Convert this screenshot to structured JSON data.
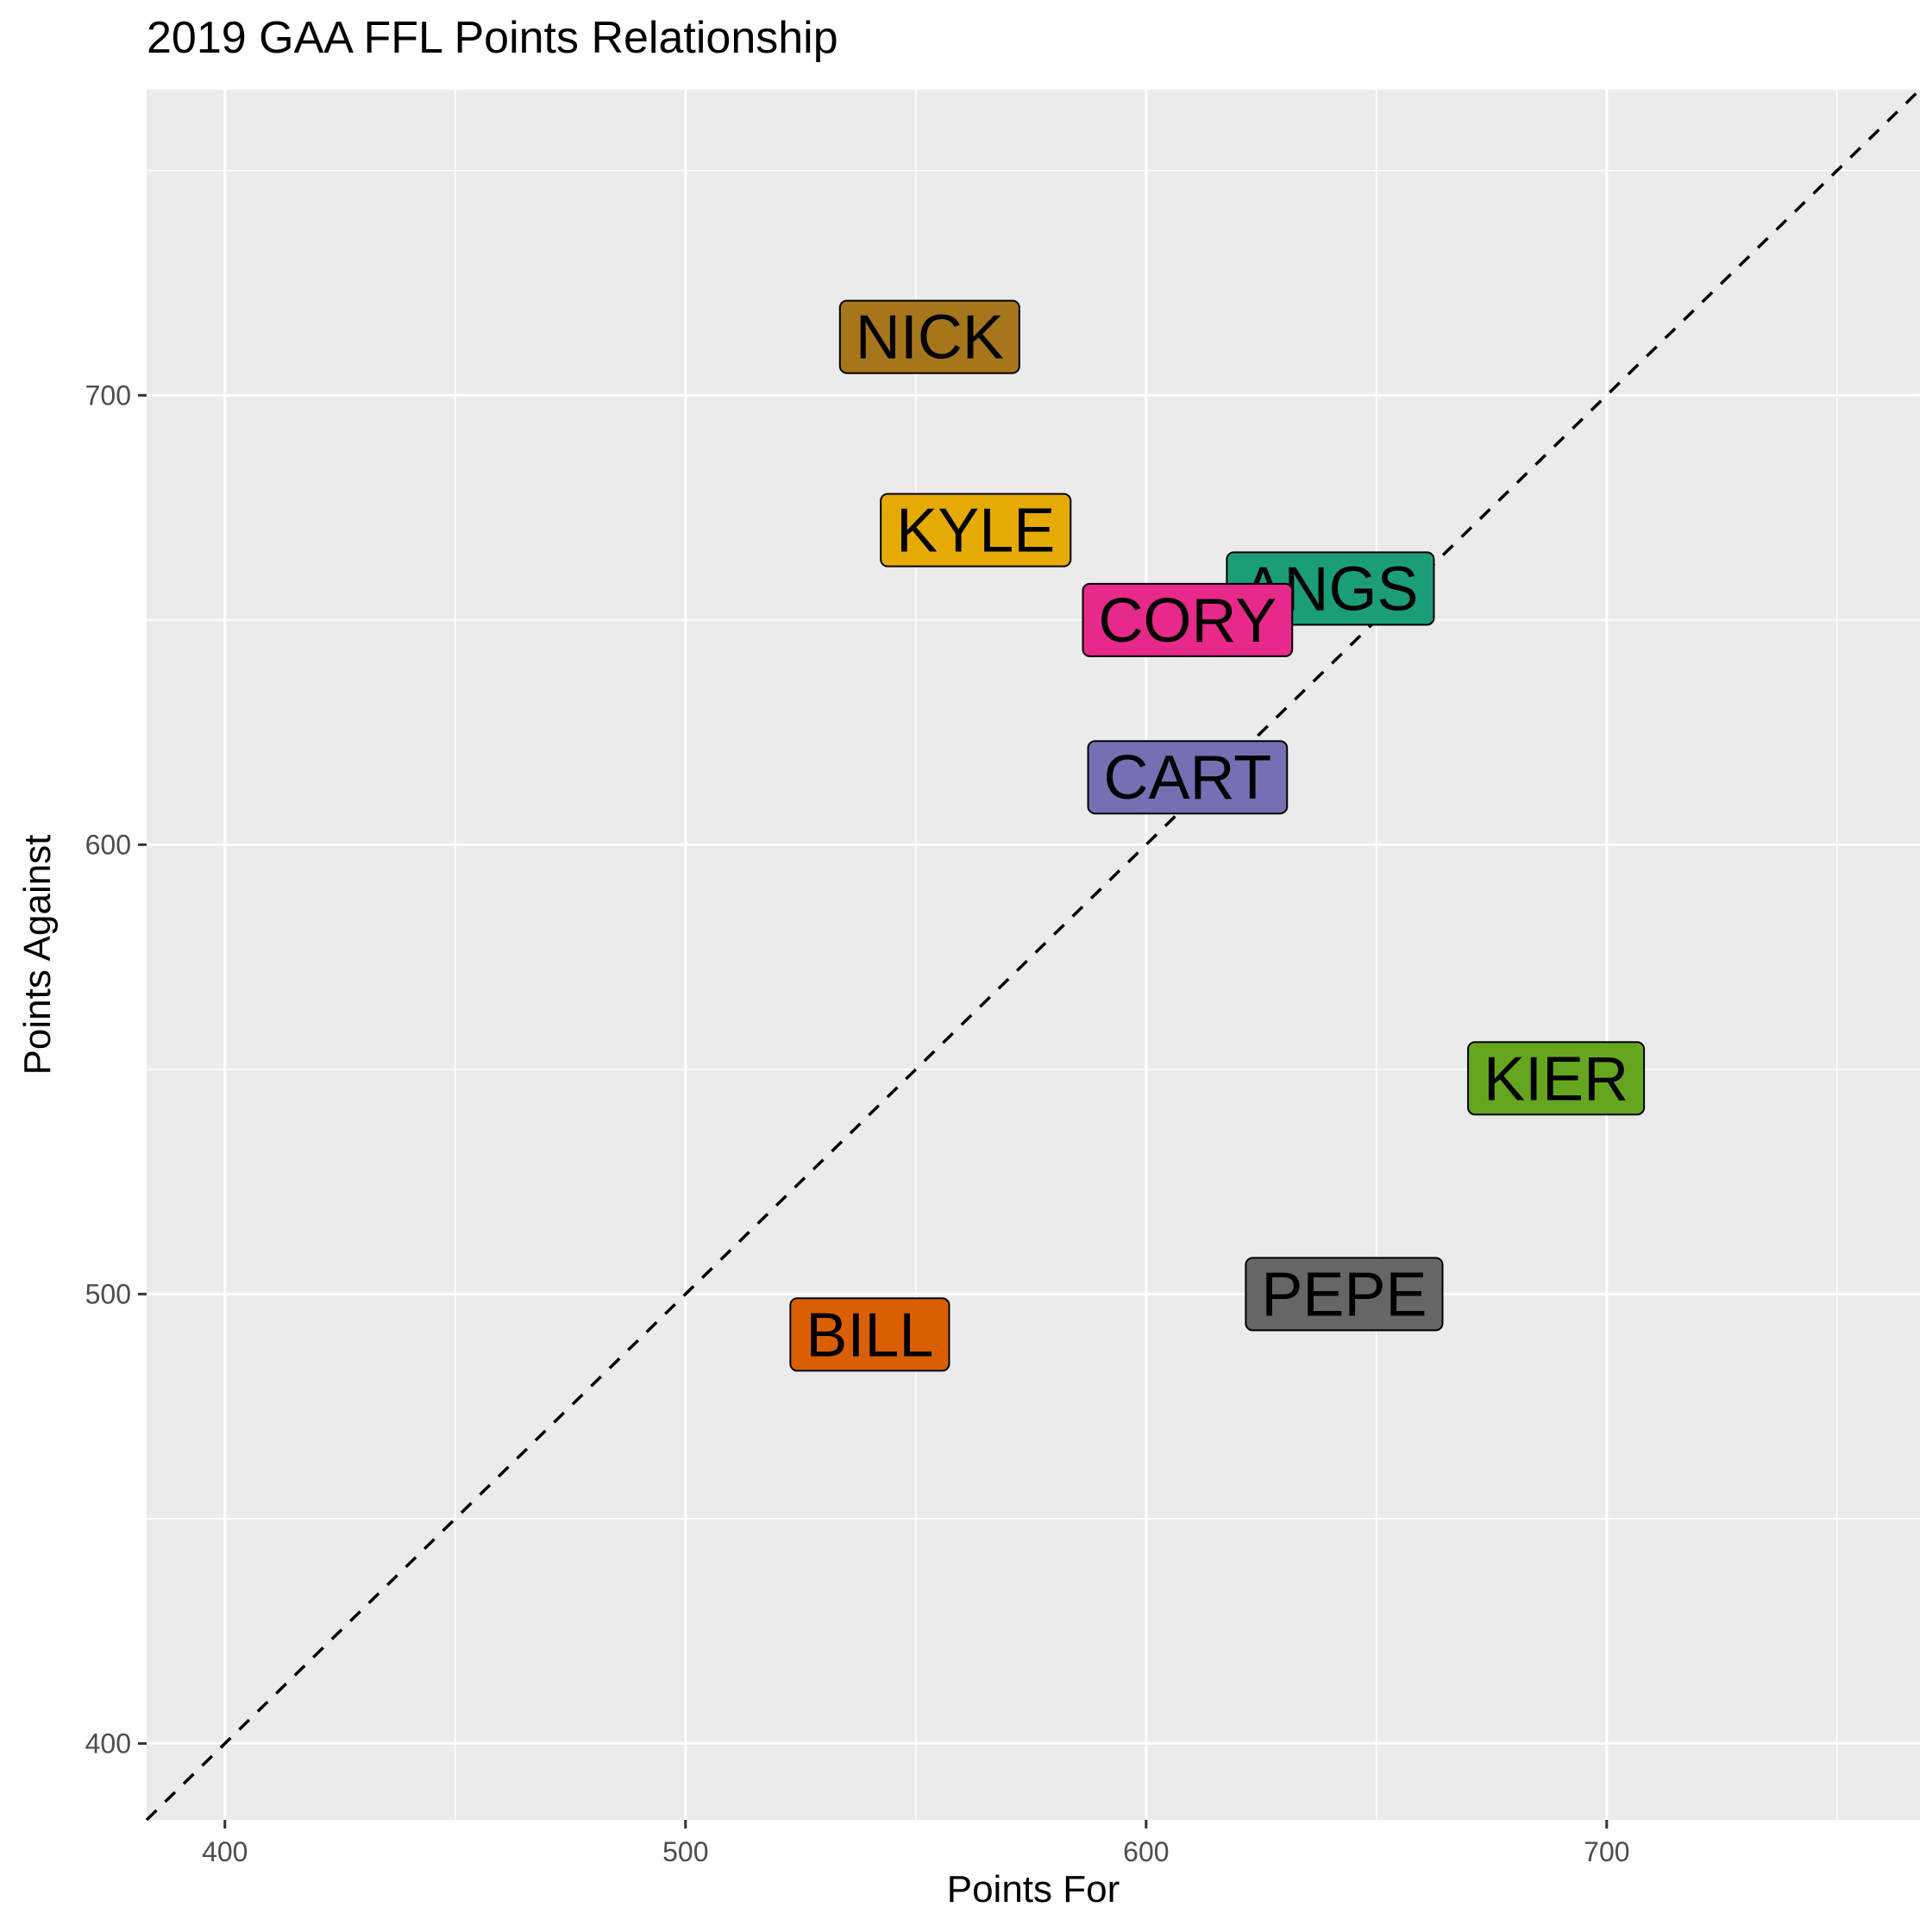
{
  "chart_data": {
    "type": "scatter",
    "title": "2019 GAA FFL Points Relationship",
    "xlabel": "Points For",
    "ylabel": "Points Against",
    "xlim": [
      383,
      768
    ],
    "ylim": [
      383,
      768
    ],
    "x_ticks": [
      400,
      500,
      600,
      700
    ],
    "y_ticks": [
      400,
      500,
      600,
      700
    ],
    "grid": true,
    "reference_line": {
      "type": "y=x",
      "style": "dashed",
      "color": "#000000"
    },
    "points": [
      {
        "label": "NICK",
        "x": 553,
        "y": 713,
        "color": "#A6761D"
      },
      {
        "label": "KYLE",
        "x": 563,
        "y": 670,
        "color": "#E6AB02"
      },
      {
        "label": "ANGS",
        "x": 640,
        "y": 657,
        "color": "#1B9E77"
      },
      {
        "label": "CORY",
        "x": 609,
        "y": 650,
        "color": "#E7298A"
      },
      {
        "label": "CART",
        "x": 609,
        "y": 615,
        "color": "#7570B3"
      },
      {
        "label": "KIER",
        "x": 689,
        "y": 548,
        "color": "#66A61E"
      },
      {
        "label": "PEPE",
        "x": 643,
        "y": 500,
        "color": "#666666"
      },
      {
        "label": "BILL",
        "x": 540,
        "y": 491,
        "color": "#D95F02"
      }
    ]
  }
}
